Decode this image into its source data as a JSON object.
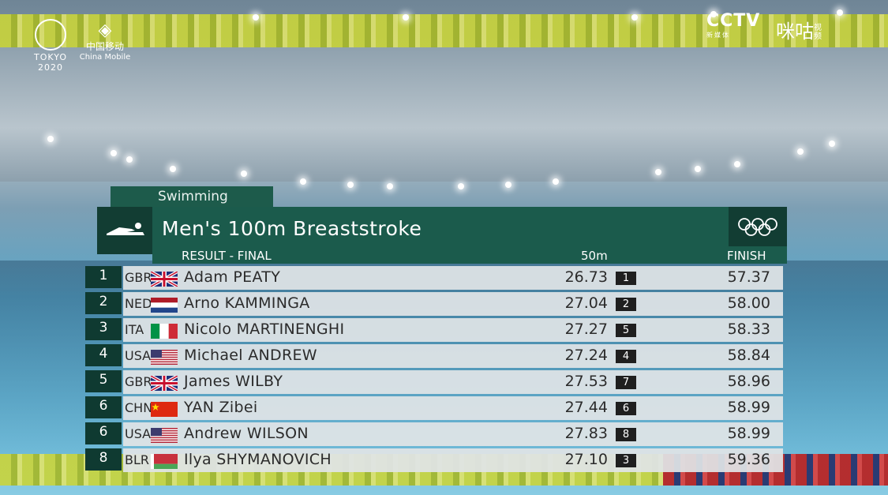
{
  "broadcast": {
    "olympics_logo": "TOKYO 2020",
    "sponsor_cn": "中国移动",
    "sponsor_en": "China Mobile",
    "channel": "CCTV",
    "channel_sub": "新媒体",
    "platform": "咪咕",
    "platform_sub": "视频"
  },
  "scoreboard": {
    "sport": "Swimming",
    "event_title": "Men's 100m Breaststroke",
    "stage": "RESULT - FINAL",
    "col_split": "50m",
    "col_finish": "FINISH",
    "colors": {
      "panel": "#1b5b4c",
      "panel_dark": "#123d33",
      "row": "#e0e4e6"
    },
    "rows": [
      {
        "rank": "1",
        "noc": "GBR",
        "flag": "gbr",
        "name": "Adam PEATY",
        "split": "26.73",
        "split_rank": "1",
        "finish": "57.37"
      },
      {
        "rank": "2",
        "noc": "NED",
        "flag": "ned",
        "name": "Arno KAMMINGA",
        "split": "27.04",
        "split_rank": "2",
        "finish": "58.00"
      },
      {
        "rank": "3",
        "noc": "ITA",
        "flag": "ita",
        "name": "Nicolo MARTINENGHI",
        "split": "27.27",
        "split_rank": "5",
        "finish": "58.33"
      },
      {
        "rank": "4",
        "noc": "USA",
        "flag": "usa",
        "name": "Michael ANDREW",
        "split": "27.24",
        "split_rank": "4",
        "finish": "58.84"
      },
      {
        "rank": "5",
        "noc": "GBR",
        "flag": "gbr",
        "name": "James WILBY",
        "split": "27.53",
        "split_rank": "7",
        "finish": "58.96"
      },
      {
        "rank": "6",
        "noc": "CHN",
        "flag": "chn",
        "name": "YAN Zibei",
        "split": "27.44",
        "split_rank": "6",
        "finish": "58.99"
      },
      {
        "rank": "6",
        "noc": "USA",
        "flag": "usa",
        "name": "Andrew WILSON",
        "split": "27.83",
        "split_rank": "8",
        "finish": "58.99"
      },
      {
        "rank": "8",
        "noc": "BLR",
        "flag": "blr",
        "name": "Ilya SHYMANOVICH",
        "split": "27.10",
        "split_rank": "3",
        "finish": "59.36"
      }
    ]
  }
}
